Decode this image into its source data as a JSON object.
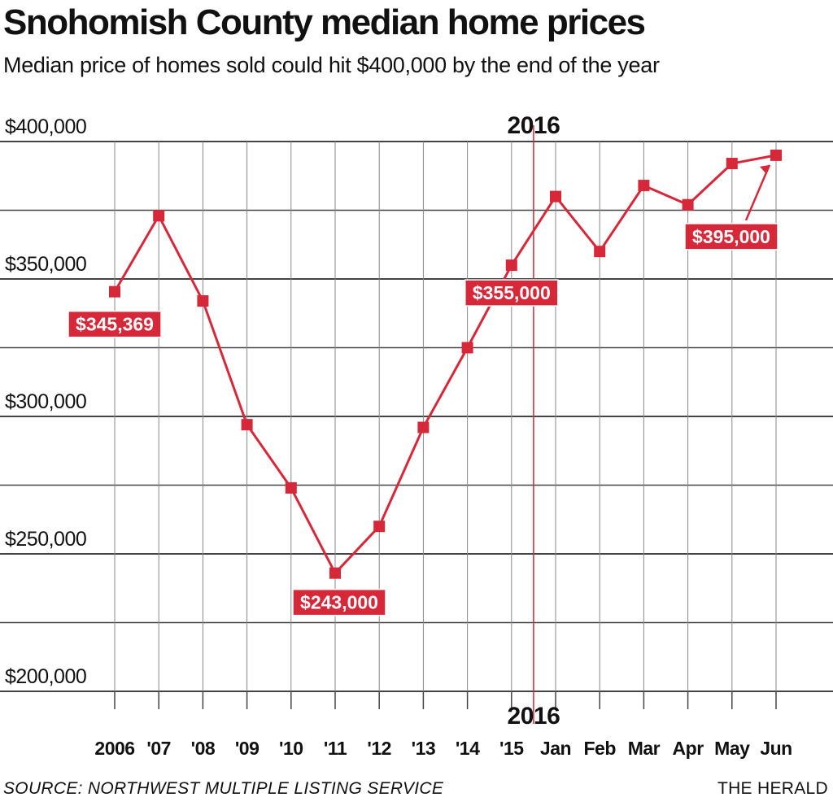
{
  "header": {
    "title": "Snohomish County median home prices",
    "subtitle": "Median price of homes sold could hit $400,000 by the end of the year"
  },
  "footer": {
    "source": "SOURCE: NORTHWEST MULTIPLE LISTING SERVICE",
    "credit": "THE HERALD"
  },
  "colors": {
    "line": "#d62839",
    "marker": "#d62839",
    "grid": "#444444",
    "divider": "#c0303a",
    "label_bg": "#d62839"
  },
  "chart_data": {
    "type": "line",
    "title": "Snohomish County median home prices",
    "subtitle": "Median price of homes sold could hit $400,000 by the end of the year",
    "categories": [
      "2006",
      "'07",
      "'08",
      "'09",
      "'10",
      "'11",
      "'12",
      "'13",
      "'14",
      "'15",
      "Jan",
      "Feb",
      "Mar",
      "Apr",
      "May",
      "Jun"
    ],
    "series": [
      {
        "values": [
          345369,
          373000,
          342000,
          297000,
          274000,
          243000,
          260000,
          296000,
          325000,
          355000,
          380000,
          360000,
          384000,
          377000,
          392000,
          395000
        ]
      }
    ],
    "ylim": [
      190000,
      400000
    ],
    "yticks": [
      200000,
      250000,
      300000,
      350000,
      400000
    ],
    "ytick_labels": [
      "$200,000",
      "$250,000",
      "$300,000",
      "$350,000",
      "$400,000"
    ],
    "grid": true,
    "divider_label": "2016",
    "annotations": [
      {
        "index": 0,
        "text": "$345,369"
      },
      {
        "index": 5,
        "text": "$243,000"
      },
      {
        "index": 9,
        "text": "$355,000"
      },
      {
        "index": 15,
        "text": "$395,000"
      }
    ]
  }
}
